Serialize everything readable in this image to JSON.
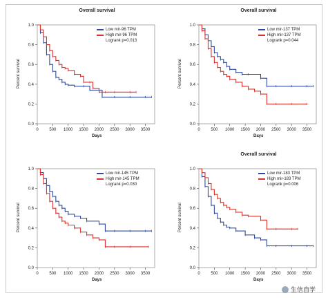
{
  "watermark": "生信自学",
  "chart_data": [
    {
      "type": "line",
      "title": "Overall survival",
      "xlabel": "Days",
      "ylabel": "Percent survival",
      "xlim": [
        0,
        3800
      ],
      "ylim": [
        0,
        1.0
      ],
      "xticks": [
        0,
        500,
        1000,
        1500,
        2000,
        2500,
        3000,
        3500
      ],
      "yticks": [
        0.0,
        0.2,
        0.4,
        0.6,
        0.8,
        1.0
      ],
      "legend_position": "top-right",
      "logrank": "Logrank p=0.013",
      "series": [
        {
          "name": "Low mir-96 TPM",
          "color": "#2e4a9e",
          "x": [
            0,
            100,
            200,
            300,
            400,
            500,
            600,
            700,
            800,
            900,
            1000,
            1200,
            1500,
            1700,
            2000,
            2100,
            2500,
            3000,
            3500,
            3700
          ],
          "y": [
            1.0,
            0.92,
            0.82,
            0.7,
            0.6,
            0.53,
            0.47,
            0.45,
            0.42,
            0.4,
            0.39,
            0.38,
            0.38,
            0.34,
            0.34,
            0.27,
            0.27,
            0.27,
            0.27,
            0.27
          ]
        },
        {
          "name": "High mir-96 TPM",
          "color": "#d9302a",
          "x": [
            0,
            100,
            200,
            300,
            400,
            500,
            600,
            700,
            800,
            900,
            1000,
            1200,
            1400,
            1500,
            1700,
            1800,
            2000,
            2200,
            2500,
            3000,
            3200
          ],
          "y": [
            1.0,
            0.95,
            0.88,
            0.8,
            0.74,
            0.68,
            0.64,
            0.6,
            0.57,
            0.56,
            0.54,
            0.5,
            0.48,
            0.42,
            0.42,
            0.36,
            0.32,
            0.32,
            0.32,
            0.32,
            0.32
          ]
        }
      ]
    },
    {
      "type": "line",
      "title": "Overall survival",
      "xlabel": "Days",
      "ylabel": "Percent survival",
      "xlim": [
        0,
        3800
      ],
      "ylim": [
        0,
        1.0
      ],
      "xticks": [
        0,
        500,
        1000,
        1500,
        2000,
        2500,
        3000,
        3500
      ],
      "yticks": [
        0.0,
        0.2,
        0.4,
        0.6,
        0.8,
        1.0
      ],
      "legend_position": "top-right",
      "logrank": "Logrank p=0.044",
      "series": [
        {
          "name": "Low mir-137 TPM",
          "color": "#2e4a9e",
          "x": [
            0,
            100,
            200,
            300,
            400,
            500,
            600,
            700,
            800,
            900,
            1000,
            1200,
            1400,
            1600,
            2000,
            2200,
            2500,
            3000,
            3500,
            3700
          ],
          "y": [
            1.0,
            0.96,
            0.9,
            0.84,
            0.78,
            0.72,
            0.68,
            0.65,
            0.62,
            0.58,
            0.55,
            0.52,
            0.5,
            0.5,
            0.46,
            0.38,
            0.38,
            0.38,
            0.38,
            0.38
          ]
        },
        {
          "name": "High mir-137 TPM",
          "color": "#d9302a",
          "x": [
            0,
            100,
            200,
            300,
            400,
            500,
            600,
            700,
            800,
            900,
            1000,
            1200,
            1400,
            1600,
            1800,
            2000,
            2200,
            2500,
            3000,
            3500
          ],
          "y": [
            1.0,
            0.94,
            0.86,
            0.76,
            0.68,
            0.62,
            0.57,
            0.53,
            0.5,
            0.48,
            0.45,
            0.42,
            0.38,
            0.35,
            0.33,
            0.3,
            0.2,
            0.2,
            0.2,
            0.2
          ]
        }
      ]
    },
    {
      "type": "line",
      "title": "",
      "xlabel": "Days",
      "ylabel": "Percent survival",
      "xlim": [
        0,
        3800
      ],
      "ylim": [
        0,
        1.0
      ],
      "xticks": [
        0,
        500,
        1000,
        1500,
        2000,
        2500,
        3000,
        3500
      ],
      "yticks": [
        0.0,
        0.2,
        0.4,
        0.6,
        0.8,
        1.0
      ],
      "legend_position": "top-right",
      "logrank": "Logrank p=0.030",
      "series": [
        {
          "name": "Low mir-145 TPM",
          "color": "#2e4a9e",
          "x": [
            0,
            100,
            200,
            300,
            400,
            500,
            600,
            700,
            800,
            900,
            1000,
            1200,
            1400,
            1600,
            2000,
            2200,
            2500,
            3000,
            3500,
            3700
          ],
          "y": [
            1.0,
            0.96,
            0.9,
            0.83,
            0.77,
            0.72,
            0.67,
            0.63,
            0.6,
            0.57,
            0.54,
            0.52,
            0.5,
            0.47,
            0.44,
            0.37,
            0.37,
            0.37,
            0.37,
            0.37
          ]
        },
        {
          "name": "High mir-145 TPM",
          "color": "#d9302a",
          "x": [
            0,
            100,
            200,
            300,
            400,
            500,
            600,
            700,
            800,
            900,
            1000,
            1200,
            1400,
            1600,
            1800,
            2000,
            2200,
            2500,
            3000,
            3600
          ],
          "y": [
            1.0,
            0.94,
            0.85,
            0.75,
            0.67,
            0.6,
            0.55,
            0.51,
            0.47,
            0.45,
            0.43,
            0.4,
            0.36,
            0.33,
            0.3,
            0.28,
            0.21,
            0.21,
            0.21,
            0.21
          ]
        }
      ]
    },
    {
      "type": "line",
      "title": "Overall survival",
      "xlabel": "Days",
      "ylabel": "Percent survival",
      "xlim": [
        0,
        3800
      ],
      "ylim": [
        0,
        1.0
      ],
      "xticks": [
        0,
        500,
        1000,
        1500,
        2000,
        2500,
        3000,
        3500
      ],
      "yticks": [
        0.0,
        0.2,
        0.4,
        0.6,
        0.8,
        1.0
      ],
      "legend_position": "top-right",
      "logrank": "Logrank p=0.006",
      "series": [
        {
          "name": "Low mir-183 TPM",
          "color": "#2e4a9e",
          "x": [
            0,
            100,
            200,
            300,
            400,
            500,
            600,
            700,
            800,
            900,
            1000,
            1200,
            1500,
            1800,
            2000,
            2200,
            2500,
            3000,
            3500,
            3700
          ],
          "y": [
            1.0,
            0.92,
            0.82,
            0.72,
            0.63,
            0.55,
            0.5,
            0.46,
            0.43,
            0.41,
            0.4,
            0.37,
            0.33,
            0.3,
            0.28,
            0.22,
            0.22,
            0.22,
            0.22,
            0.22
          ]
        },
        {
          "name": "High mir-183 TPM",
          "color": "#d9302a",
          "x": [
            0,
            100,
            200,
            300,
            400,
            500,
            600,
            700,
            800,
            900,
            1000,
            1200,
            1400,
            1600,
            2000,
            2200,
            2500,
            3000,
            3200
          ],
          "y": [
            1.0,
            0.96,
            0.91,
            0.85,
            0.79,
            0.74,
            0.7,
            0.66,
            0.63,
            0.61,
            0.59,
            0.56,
            0.53,
            0.52,
            0.48,
            0.39,
            0.39,
            0.39,
            0.39
          ]
        }
      ]
    }
  ]
}
